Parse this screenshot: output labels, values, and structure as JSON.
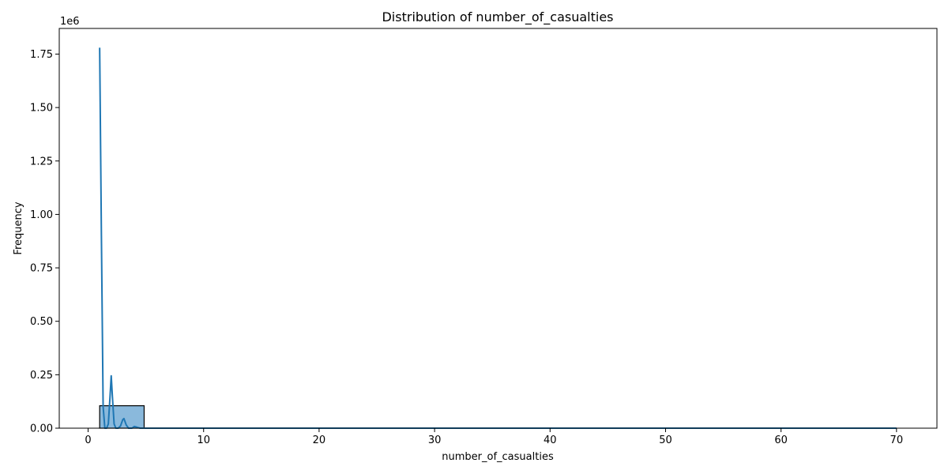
{
  "chart_data": {
    "type": "bar",
    "title": "Distribution of number_of_casualties",
    "xlabel": "number_of_casualties",
    "ylabel": "Frequency",
    "y_offset_text": "1e6",
    "xlim": [
      -2.5,
      73.5
    ],
    "ylim": [
      0,
      1870000
    ],
    "x_ticks": [
      0,
      10,
      20,
      30,
      40,
      50,
      60,
      70
    ],
    "x_tick_labels": [
      "0",
      "10",
      "20",
      "30",
      "40",
      "50",
      "60",
      "70"
    ],
    "y_ticks": [
      0,
      250000,
      500000,
      750000,
      1000000,
      1250000,
      1500000,
      1750000
    ],
    "y_tick_labels": [
      "0.00",
      "0.25",
      "0.50",
      "0.75",
      "1.00",
      "1.25",
      "1.50",
      "1.75"
    ],
    "grid": false,
    "bars": [
      {
        "x0": 1,
        "x1": 4.85,
        "value": 105000
      }
    ],
    "kde_line": {
      "x": [
        1.0,
        1.15,
        1.3,
        1.45,
        1.6,
        1.75,
        1.9,
        2.0,
        2.1,
        2.25,
        2.4,
        2.6,
        2.8,
        3.0,
        3.1,
        3.3,
        3.5,
        3.8,
        4.0,
        4.2,
        4.5,
        5.0,
        6.0,
        10.0,
        20.0,
        30.0,
        40.0,
        50.0,
        60.0,
        70.0
      ],
      "y": [
        1780000,
        900000,
        100000,
        0,
        0,
        20000,
        150000,
        245000,
        150000,
        20000,
        0,
        0,
        10000,
        40000,
        45000,
        15000,
        0,
        0,
        8000,
        5000,
        0,
        0,
        0,
        0,
        0,
        0,
        0,
        0,
        0,
        0
      ]
    },
    "colors": {
      "bar_fill": "#8ab9dc",
      "bar_edge": "#000000",
      "line": "#1f77b4"
    }
  }
}
